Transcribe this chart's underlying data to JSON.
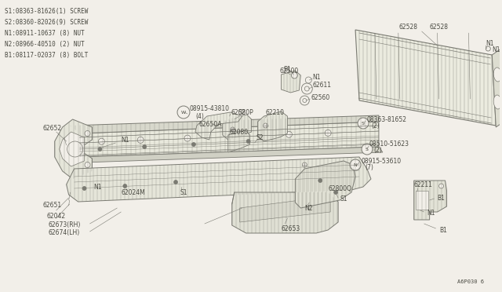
{
  "bg_color": "#f2efe9",
  "line_color": "#7a7a72",
  "text_color": "#4a4a42",
  "figsize": [
    6.4,
    3.72
  ],
  "dpi": 100,
  "legend_lines": [
    "S1:08363-81626(1) SCREW",
    "S2:08360-82026(9) SCREW",
    "N1:08911-10637 (8) NUT",
    "N2:08966-40510 (2) NUT",
    "B1:08117-02037 (8) BOLT"
  ],
  "diagram_number": "A6P030 6"
}
